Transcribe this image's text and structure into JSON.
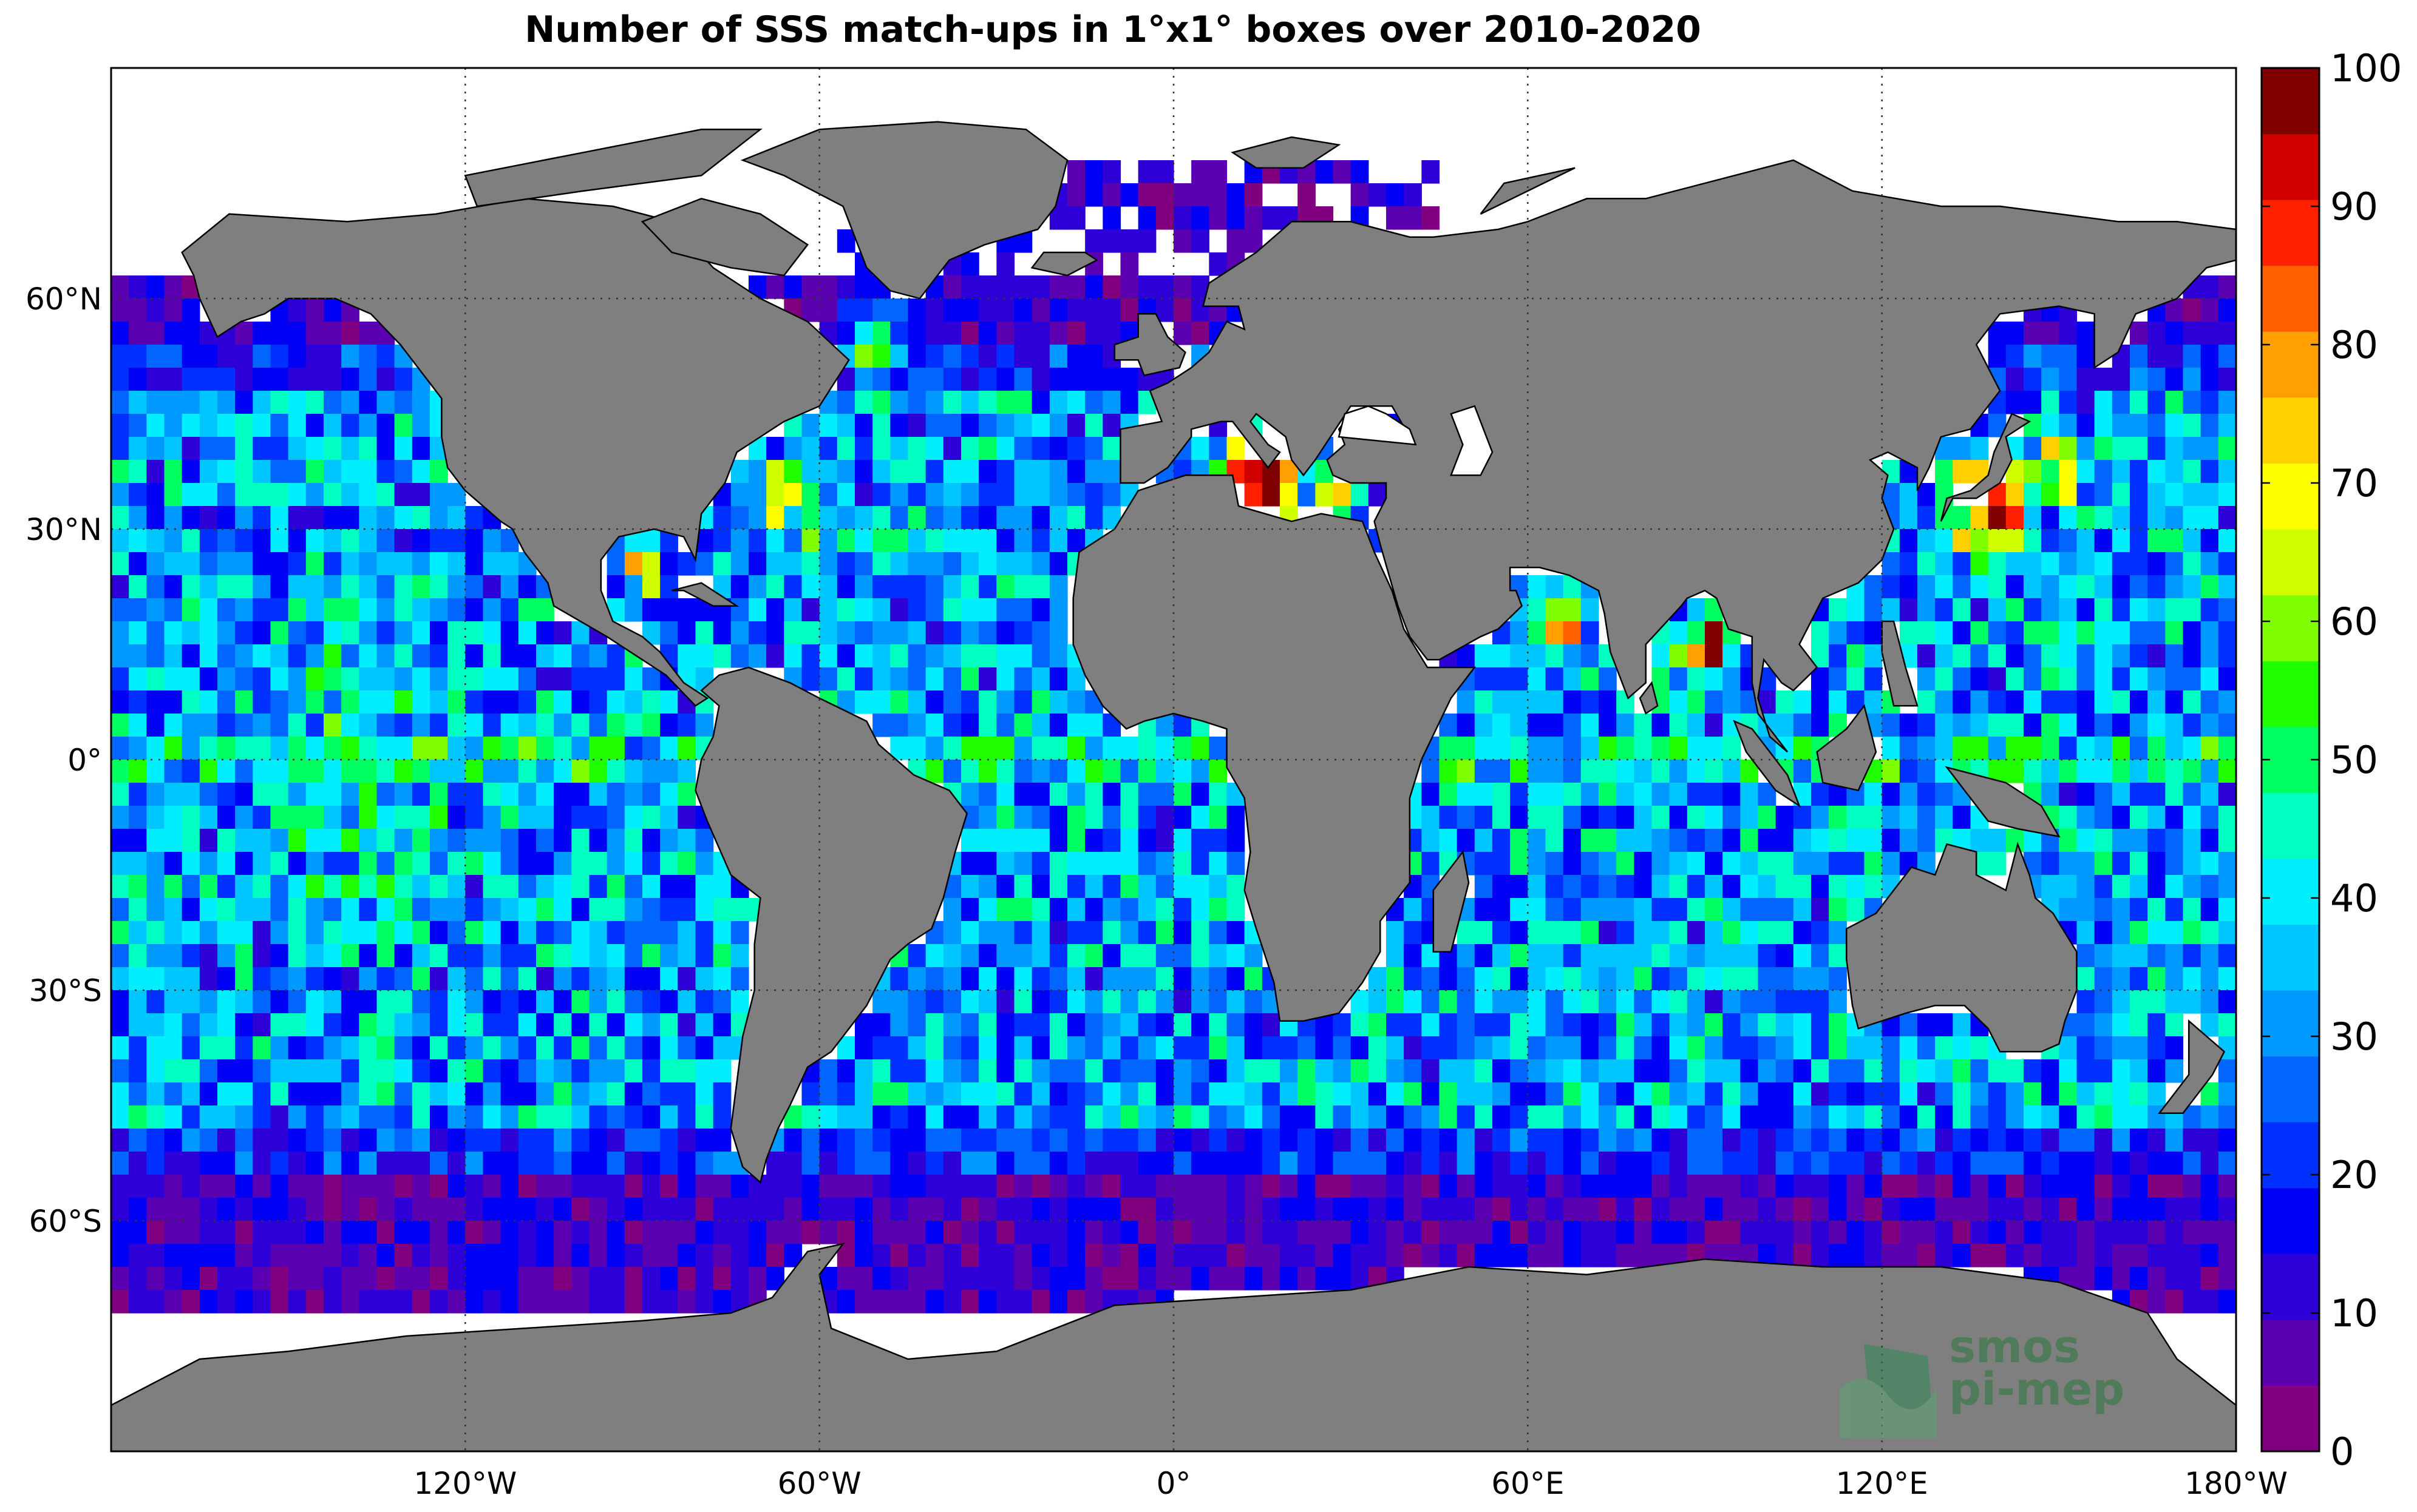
{
  "title": "Number of SSS match-ups in 1°x1° boxes over 2010-2020",
  "map": {
    "projection": "equirectangular",
    "lon_ticks": [
      {
        "lon": -120,
        "label": "120°W"
      },
      {
        "lon": -60,
        "label": "60°W"
      },
      {
        "lon": 0,
        "label": "0°"
      },
      {
        "lon": 60,
        "label": "60°E"
      },
      {
        "lon": 120,
        "label": "120°E"
      },
      {
        "lon": 180,
        "label": "180°W"
      }
    ],
    "lat_ticks": [
      {
        "lat": 60,
        "label": "60°N"
      },
      {
        "lat": 30,
        "label": "30°N"
      },
      {
        "lat": 0,
        "label": "0°"
      },
      {
        "lat": -30,
        "label": "30°S"
      },
      {
        "lat": -60,
        "label": "60°S"
      }
    ],
    "lon_range": [
      -180,
      180
    ],
    "lat_range": [
      -90,
      90
    ],
    "grid": "dotted",
    "land_color": "#7f7f7f",
    "no_data_color": "#ffffff"
  },
  "colorbar": {
    "min": 0,
    "max": 100,
    "step": 5,
    "tick_labels": [
      "0",
      "10",
      "20",
      "30",
      "40",
      "50",
      "60",
      "70",
      "80",
      "90",
      "100"
    ],
    "colors": [
      "#800080",
      "#5a00b0",
      "#2c00d6",
      "#0000f5",
      "#0030ff",
      "#0066ff",
      "#0099ff",
      "#00c6ff",
      "#00eeff",
      "#00ffc0",
      "#00ff60",
      "#20ff00",
      "#80ff00",
      "#d0ff00",
      "#ffff00",
      "#ffd000",
      "#ffa000",
      "#ff6000",
      "#ff2000",
      "#d00000",
      "#800000"
    ]
  },
  "logo": {
    "line1": "smos",
    "line2": "pi-mep"
  }
}
